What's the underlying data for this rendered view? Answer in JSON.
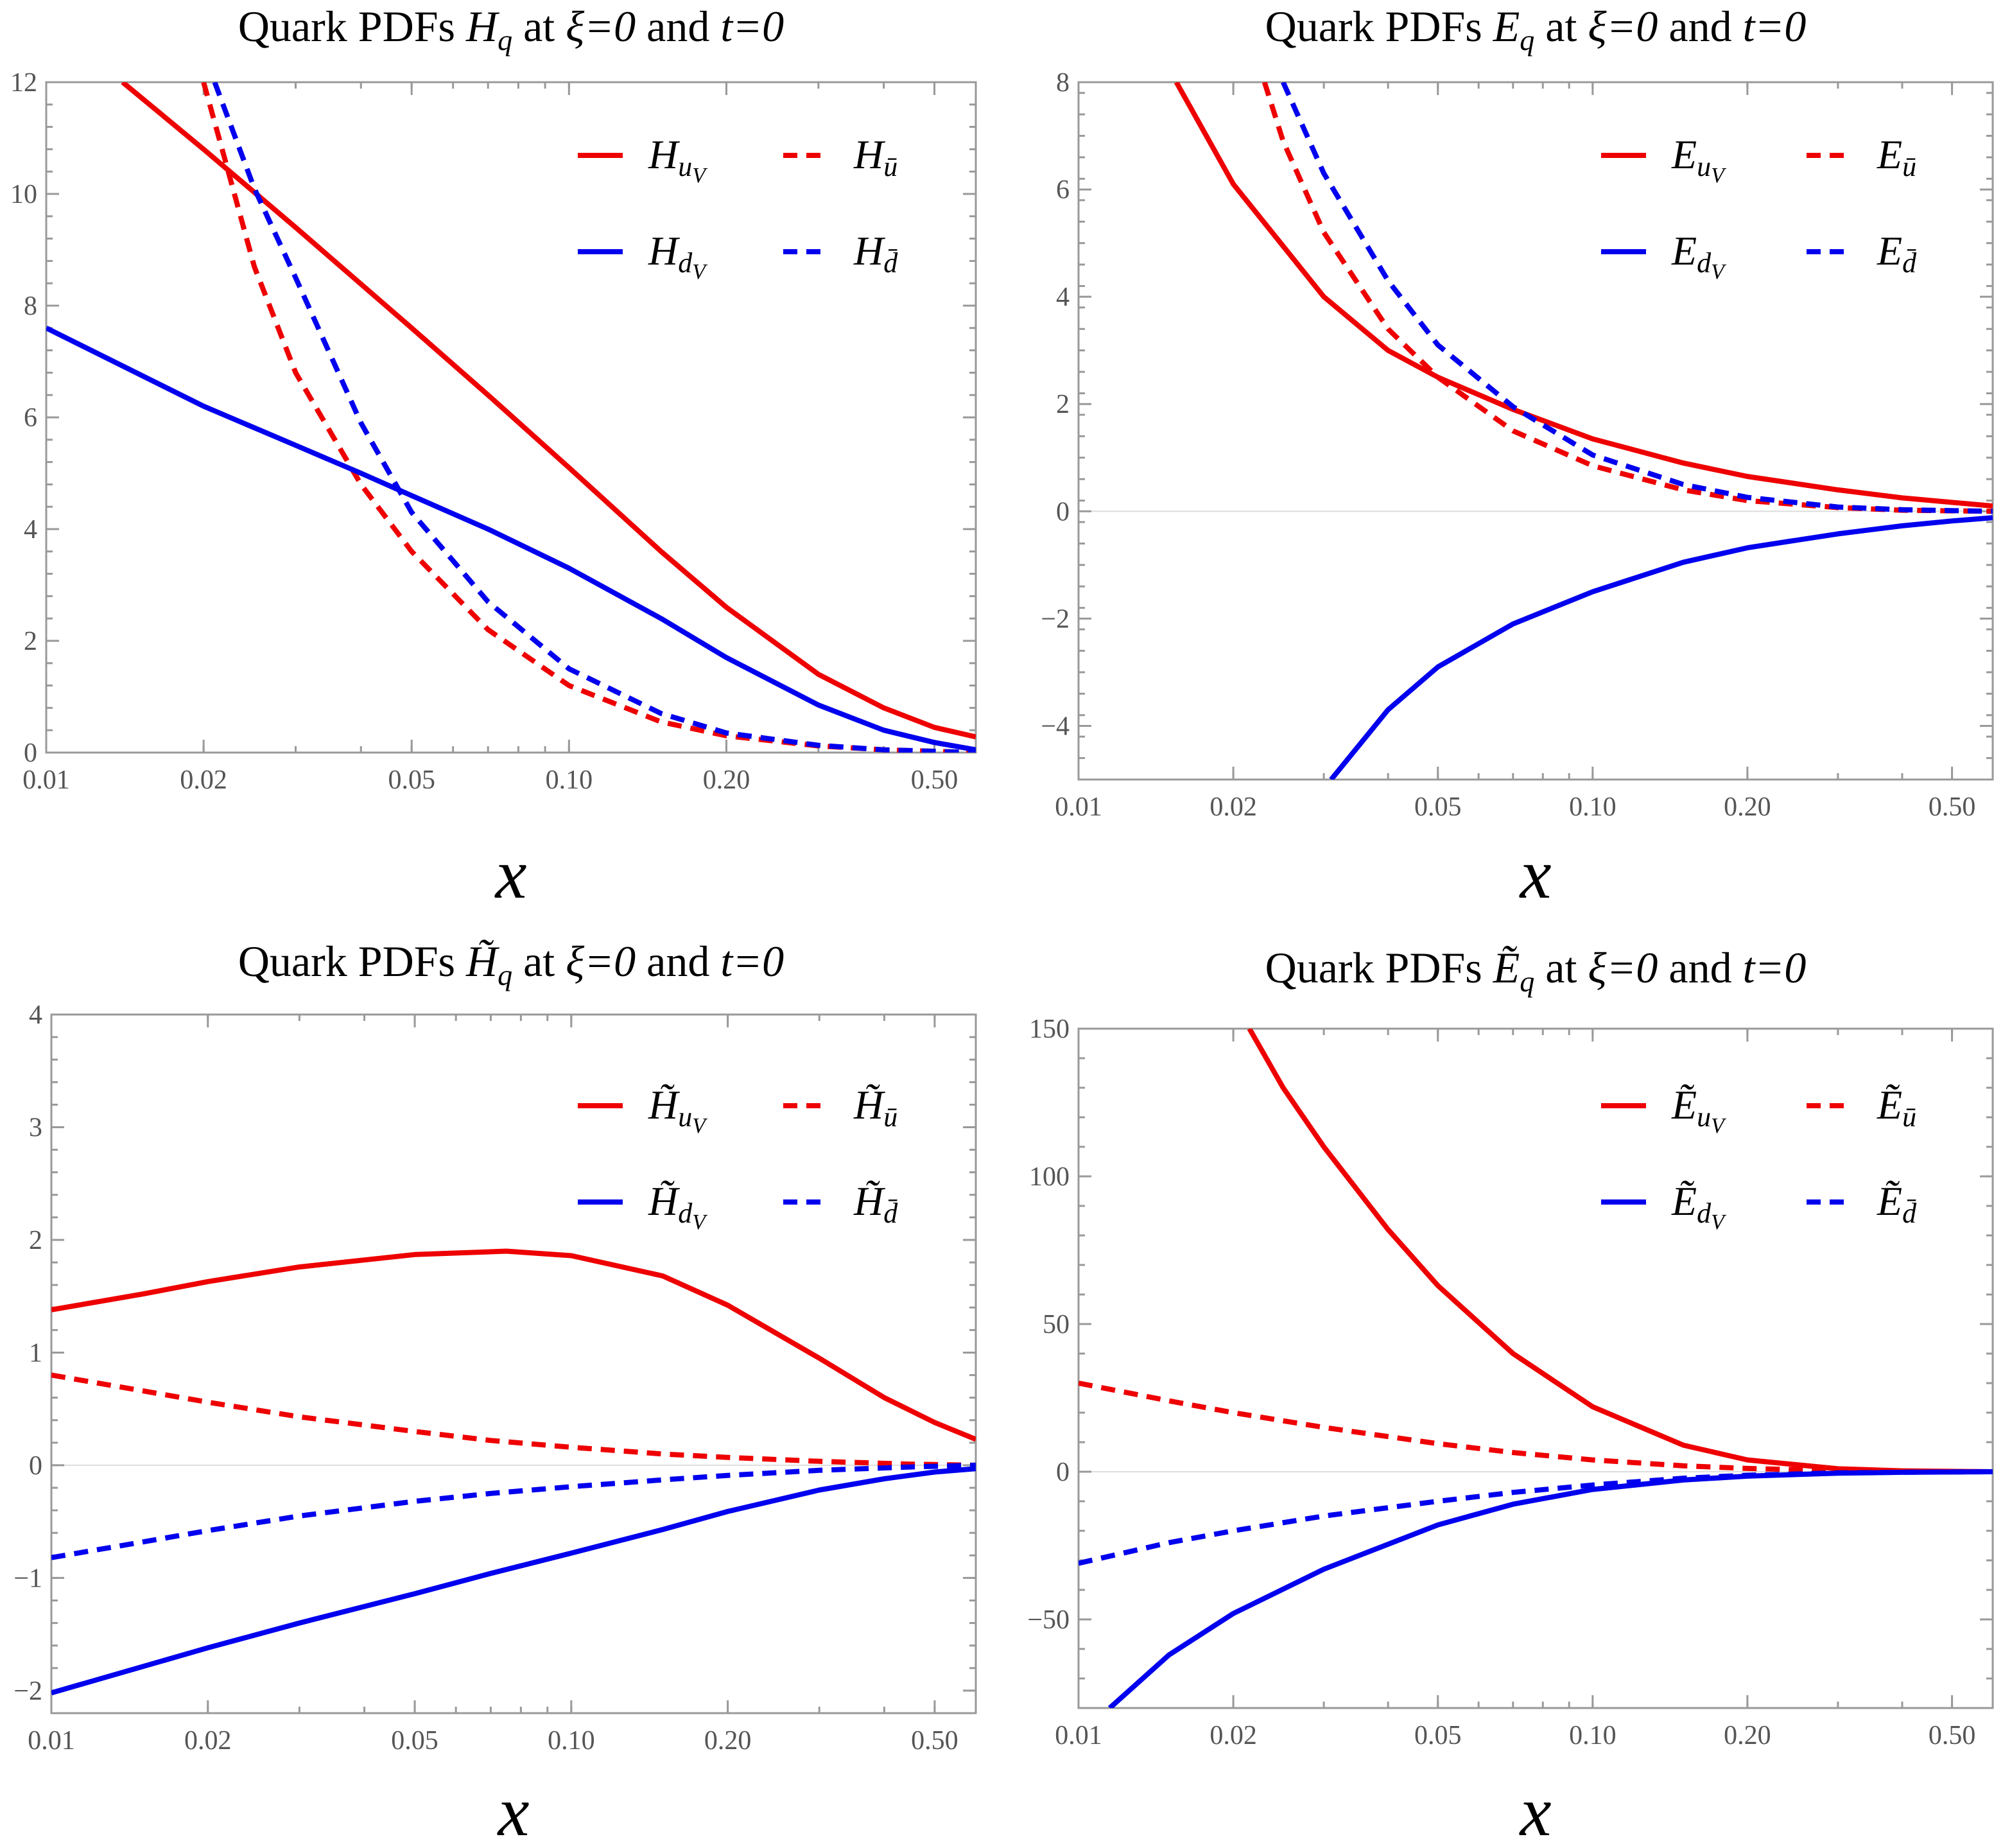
{
  "chart_data": [
    {
      "type": "line",
      "title": {
        "prefix": "Quark PDFs ",
        "symbol": "H",
        "tilde": false,
        "sub": "q",
        "mid": " at ",
        "xi": "ξ",
        "eq1": "=0",
        "and": " and ",
        "t": "t",
        "eq2": "=0"
      },
      "xlabel": "x",
      "x_scale": "log",
      "xlim": [
        0.01,
        0.6
      ],
      "ylim": [
        0,
        12
      ],
      "xticks": [
        0.01,
        0.02,
        0.05,
        0.1,
        0.2,
        0.5
      ],
      "xtick_labels": [
        "0.01",
        "0.02",
        "0.05",
        "0.10",
        "0.20",
        "0.50"
      ],
      "yticks": [
        0,
        2,
        4,
        6,
        8,
        10,
        12
      ],
      "ytick_labels": [
        "0",
        "2",
        "4",
        "6",
        "8",
        "10",
        "12"
      ],
      "legend": [
        {
          "symbol": "H",
          "sub": "u",
          "subsub": "V",
          "bar": false,
          "color": "#ee0000",
          "dash": false
        },
        {
          "symbol": "H",
          "sub": "u",
          "subsub": "",
          "bar": true,
          "color": "#ee0000",
          "dash": true
        },
        {
          "symbol": "H",
          "sub": "d",
          "subsub": "V",
          "bar": false,
          "color": "#0000ee",
          "dash": false
        },
        {
          "symbol": "H",
          "sub": "d",
          "subsub": "",
          "bar": true,
          "color": "#0000ee",
          "dash": true
        }
      ],
      "series": [
        {
          "name": "H_uV",
          "color": "#ee0000",
          "dash": false,
          "x": [
            0.014,
            0.02,
            0.03,
            0.05,
            0.07,
            0.1,
            0.15,
            0.2,
            0.3,
            0.4,
            0.5,
            0.6
          ],
          "y": [
            12.0,
            10.8,
            9.4,
            7.6,
            6.4,
            5.1,
            3.6,
            2.6,
            1.4,
            0.8,
            0.45,
            0.28
          ]
        },
        {
          "name": "H_ubar",
          "color": "#ee0000",
          "dash": true,
          "x": [
            0.02,
            0.022,
            0.025,
            0.03,
            0.04,
            0.05,
            0.07,
            0.1,
            0.15,
            0.2,
            0.3,
            0.4,
            0.6
          ],
          "y": [
            12.0,
            10.6,
            8.7,
            6.8,
            4.8,
            3.6,
            2.2,
            1.2,
            0.55,
            0.3,
            0.12,
            0.05,
            0.0
          ]
        },
        {
          "name": "H_dV",
          "color": "#0000ee",
          "dash": false,
          "x": [
            0.01,
            0.02,
            0.03,
            0.04,
            0.05,
            0.07,
            0.1,
            0.15,
            0.2,
            0.3,
            0.4,
            0.5,
            0.6
          ],
          "y": [
            7.6,
            6.2,
            5.5,
            5.0,
            4.6,
            4.0,
            3.3,
            2.4,
            1.7,
            0.85,
            0.4,
            0.18,
            0.05
          ]
        },
        {
          "name": "H_dbar",
          "color": "#0000ee",
          "dash": true,
          "x": [
            0.021,
            0.025,
            0.03,
            0.04,
            0.05,
            0.07,
            0.1,
            0.15,
            0.2,
            0.3,
            0.4,
            0.6
          ],
          "y": [
            12.0,
            10.1,
            8.5,
            5.9,
            4.3,
            2.7,
            1.5,
            0.7,
            0.35,
            0.13,
            0.05,
            0.0
          ]
        }
      ]
    },
    {
      "type": "line",
      "title": {
        "prefix": "Quark PDFs ",
        "symbol": "E",
        "tilde": false,
        "sub": "q",
        "mid": " at ",
        "xi": "ξ",
        "eq1": "=0",
        "and": " and ",
        "t": "t",
        "eq2": "=0"
      },
      "xlabel": "x",
      "x_scale": "log",
      "xlim": [
        0.01,
        0.6
      ],
      "ylim": [
        -5,
        8
      ],
      "xticks": [
        0.01,
        0.02,
        0.05,
        0.1,
        0.2,
        0.5
      ],
      "xtick_labels": [
        "0.01",
        "0.02",
        "0.05",
        "0.10",
        "0.20",
        "0.50"
      ],
      "yticks": [
        -4,
        -2,
        0,
        2,
        4,
        6,
        8
      ],
      "ytick_labels": [
        "−4",
        "−2",
        "0",
        "2",
        "4",
        "6",
        "8"
      ],
      "legend": [
        {
          "symbol": "E",
          "sub": "u",
          "subsub": "V",
          "bar": false,
          "color": "#ee0000",
          "dash": false
        },
        {
          "symbol": "E",
          "sub": "u",
          "subsub": "",
          "bar": true,
          "color": "#ee0000",
          "dash": true
        },
        {
          "symbol": "E",
          "sub": "d",
          "subsub": "V",
          "bar": false,
          "color": "#0000ee",
          "dash": false
        },
        {
          "symbol": "E",
          "sub": "d",
          "subsub": "",
          "bar": true,
          "color": "#0000ee",
          "dash": true
        }
      ],
      "series": [
        {
          "name": "E_uV",
          "color": "#ee0000",
          "dash": false,
          "x": [
            0.0155,
            0.02,
            0.03,
            0.04,
            0.05,
            0.07,
            0.1,
            0.15,
            0.2,
            0.3,
            0.4,
            0.6
          ],
          "y": [
            8.0,
            6.1,
            4.0,
            3.0,
            2.5,
            1.9,
            1.35,
            0.9,
            0.65,
            0.4,
            0.25,
            0.1
          ]
        },
        {
          "name": "E_ubar",
          "color": "#ee0000",
          "dash": true,
          "x": [
            0.023,
            0.025,
            0.03,
            0.04,
            0.05,
            0.07,
            0.1,
            0.15,
            0.2,
            0.3,
            0.4,
            0.6
          ],
          "y": [
            8.0,
            6.9,
            5.2,
            3.4,
            2.5,
            1.5,
            0.85,
            0.4,
            0.2,
            0.07,
            0.02,
            0.0
          ]
        },
        {
          "name": "E_dV",
          "color": "#0000ee",
          "dash": false,
          "x": [
            0.031,
            0.04,
            0.05,
            0.07,
            0.1,
            0.15,
            0.2,
            0.3,
            0.4,
            0.5,
            0.6
          ],
          "y": [
            -5.0,
            -3.7,
            -2.9,
            -2.1,
            -1.5,
            -0.95,
            -0.68,
            -0.42,
            -0.27,
            -0.18,
            -0.12
          ]
        },
        {
          "name": "E_dbar",
          "color": "#0000ee",
          "dash": true,
          "x": [
            0.025,
            0.03,
            0.04,
            0.05,
            0.07,
            0.1,
            0.15,
            0.2,
            0.3,
            0.4,
            0.6
          ],
          "y": [
            8.0,
            6.3,
            4.3,
            3.1,
            1.95,
            1.05,
            0.5,
            0.26,
            0.08,
            0.03,
            0.0
          ]
        }
      ]
    },
    {
      "type": "line",
      "title": {
        "prefix": "Quark PDFs ",
        "symbol": "H",
        "tilde": true,
        "sub": "q",
        "mid": " at ",
        "xi": "ξ",
        "eq1": "=0",
        "and": " and ",
        "t": "t",
        "eq2": "=0"
      },
      "xlabel": "x",
      "x_scale": "log",
      "xlim": [
        0.01,
        0.6
      ],
      "ylim": [
        -2.2,
        4
      ],
      "xticks": [
        0.01,
        0.02,
        0.05,
        0.1,
        0.2,
        0.5
      ],
      "xtick_labels": [
        "0.01",
        "0.02",
        "0.05",
        "0.10",
        "0.20",
        "0.50"
      ],
      "yticks": [
        -2,
        -1,
        0,
        1,
        2,
        3,
        4
      ],
      "ytick_labels": [
        "−2",
        "−1",
        "0",
        "1",
        "2",
        "3",
        "4"
      ],
      "legend": [
        {
          "symbol": "H",
          "sub": "u",
          "subsub": "V",
          "bar": false,
          "color": "#ee0000",
          "dash": false
        },
        {
          "symbol": "H",
          "sub": "u",
          "subsub": "",
          "bar": true,
          "color": "#ee0000",
          "dash": true
        },
        {
          "symbol": "H",
          "sub": "d",
          "subsub": "V",
          "bar": false,
          "color": "#0000ee",
          "dash": false
        },
        {
          "symbol": "H",
          "sub": "d",
          "subsub": "",
          "bar": true,
          "color": "#0000ee",
          "dash": true
        }
      ],
      "series": [
        {
          "name": "Htilde_uV",
          "color": "#ee0000",
          "dash": false,
          "x": [
            0.01,
            0.015,
            0.02,
            0.03,
            0.05,
            0.075,
            0.1,
            0.15,
            0.2,
            0.3,
            0.4,
            0.5,
            0.6
          ],
          "y": [
            1.38,
            1.52,
            1.63,
            1.76,
            1.87,
            1.9,
            1.86,
            1.68,
            1.42,
            0.95,
            0.6,
            0.38,
            0.23
          ]
        },
        {
          "name": "Htilde_ubar",
          "color": "#ee0000",
          "dash": true,
          "x": [
            0.01,
            0.015,
            0.02,
            0.03,
            0.05,
            0.07,
            0.1,
            0.15,
            0.2,
            0.3,
            0.45,
            0.6
          ],
          "y": [
            0.8,
            0.66,
            0.56,
            0.43,
            0.3,
            0.22,
            0.16,
            0.1,
            0.07,
            0.035,
            0.01,
            0.0
          ]
        },
        {
          "name": "Htilde_dV",
          "color": "#0000ee",
          "dash": false,
          "x": [
            0.01,
            0.02,
            0.03,
            0.05,
            0.07,
            0.1,
            0.15,
            0.2,
            0.3,
            0.4,
            0.5,
            0.6
          ],
          "y": [
            -2.02,
            -1.62,
            -1.4,
            -1.14,
            -0.96,
            -0.78,
            -0.57,
            -0.41,
            -0.22,
            -0.12,
            -0.06,
            -0.03
          ]
        },
        {
          "name": "Htilde_dbar",
          "color": "#0000ee",
          "dash": true,
          "x": [
            0.01,
            0.015,
            0.02,
            0.03,
            0.05,
            0.07,
            0.1,
            0.15,
            0.2,
            0.3,
            0.45,
            0.6
          ],
          "y": [
            -0.82,
            -0.68,
            -0.58,
            -0.45,
            -0.32,
            -0.25,
            -0.19,
            -0.13,
            -0.09,
            -0.045,
            -0.015,
            0.0
          ]
        }
      ]
    },
    {
      "type": "line",
      "title": {
        "prefix": "Quark PDFs ",
        "symbol": "E",
        "tilde": true,
        "sub": "q",
        "mid": " at ",
        "xi": "ξ",
        "eq1": "=0",
        "and": " and ",
        "t": "t",
        "eq2": "=0"
      },
      "xlabel": "x",
      "x_scale": "log",
      "xlim": [
        0.01,
        0.6
      ],
      "ylim": [
        -80,
        150
      ],
      "xticks": [
        0.01,
        0.02,
        0.05,
        0.1,
        0.2,
        0.5
      ],
      "xtick_labels": [
        "0.01",
        "0.02",
        "0.05",
        "0.10",
        "0.20",
        "0.50"
      ],
      "yticks": [
        -50,
        0,
        50,
        100,
        150
      ],
      "ytick_labels": [
        "−50",
        "0",
        "50",
        "100",
        "150"
      ],
      "legend": [
        {
          "symbol": "E",
          "sub": "u",
          "subsub": "V",
          "bar": false,
          "color": "#ee0000",
          "dash": false
        },
        {
          "symbol": "E",
          "sub": "u",
          "subsub": "",
          "bar": true,
          "color": "#ee0000",
          "dash": true
        },
        {
          "symbol": "E",
          "sub": "d",
          "subsub": "V",
          "bar": false,
          "color": "#0000ee",
          "dash": false
        },
        {
          "symbol": "E",
          "sub": "d",
          "subsub": "",
          "bar": true,
          "color": "#0000ee",
          "dash": true
        }
      ],
      "series": [
        {
          "name": "Etilde_uV",
          "color": "#ee0000",
          "dash": false,
          "x": [
            0.0215,
            0.025,
            0.03,
            0.04,
            0.05,
            0.07,
            0.1,
            0.15,
            0.2,
            0.3,
            0.4,
            0.6
          ],
          "y": [
            150,
            130,
            110,
            82,
            63,
            40,
            22,
            9,
            4,
            1,
            0.3,
            0.0
          ]
        },
        {
          "name": "Etilde_ubar",
          "color": "#ee0000",
          "dash": true,
          "x": [
            0.01,
            0.015,
            0.02,
            0.03,
            0.05,
            0.07,
            0.1,
            0.15,
            0.2,
            0.3,
            0.45,
            0.6
          ],
          "y": [
            30,
            24,
            20,
            15,
            9.5,
            6.5,
            4,
            2,
            1.1,
            0.4,
            0.1,
            0.0
          ]
        },
        {
          "name": "Etilde_dV",
          "color": "#0000ee",
          "dash": false,
          "x": [
            0.0115,
            0.015,
            0.02,
            0.03,
            0.05,
            0.07,
            0.1,
            0.15,
            0.2,
            0.3,
            0.4,
            0.6
          ],
          "y": [
            -80,
            -62,
            -48,
            -33,
            -18,
            -11,
            -6,
            -2.8,
            -1.5,
            -0.5,
            -0.2,
            0.0
          ]
        },
        {
          "name": "Etilde_dbar",
          "color": "#0000ee",
          "dash": true,
          "x": [
            0.01,
            0.015,
            0.02,
            0.03,
            0.05,
            0.07,
            0.1,
            0.15,
            0.2,
            0.3,
            0.45,
            0.6
          ],
          "y": [
            -31,
            -24,
            -20,
            -15,
            -10,
            -7,
            -4.5,
            -2.2,
            -1.2,
            -0.4,
            -0.1,
            0.0
          ]
        }
      ]
    }
  ]
}
